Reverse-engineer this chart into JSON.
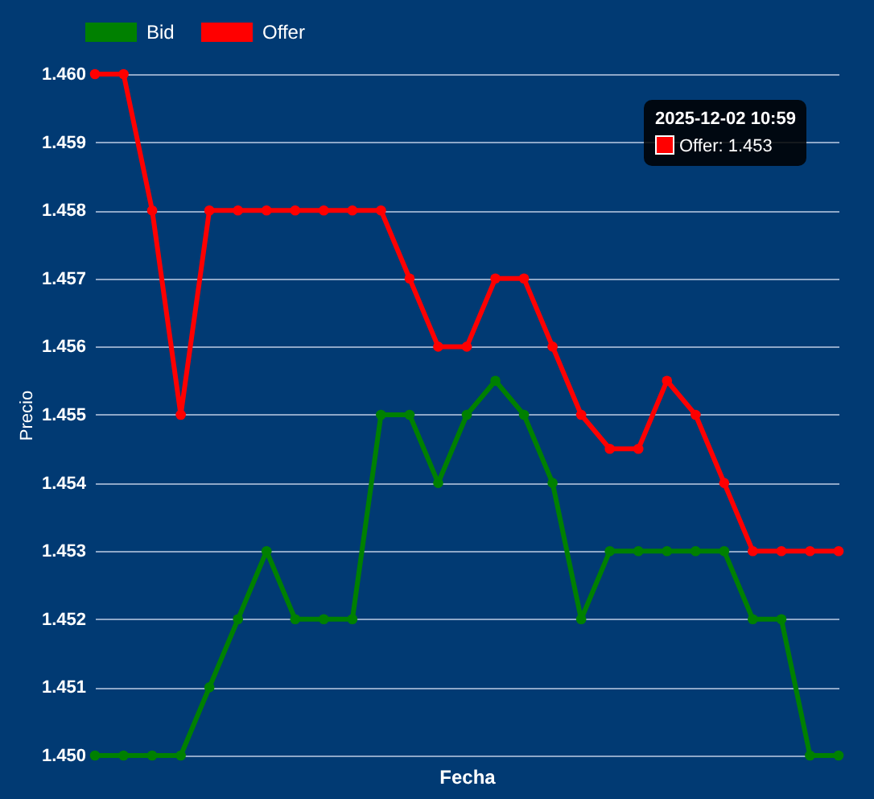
{
  "chart_data": {
    "type": "line",
    "xlabel": "Fecha",
    "ylabel": "Precio",
    "categories": [
      null,
      null,
      null,
      null,
      null,
      null,
      null,
      null,
      null,
      null,
      null,
      null,
      null,
      null,
      null,
      null,
      null,
      null,
      null,
      null,
      null,
      null,
      null,
      null,
      null,
      null,
      null
    ],
    "series": [
      {
        "name": "Bid",
        "color": "#008000",
        "values": [
          1.45,
          1.45,
          1.45,
          1.45,
          1.451,
          1.452,
          1.453,
          1.452,
          1.452,
          1.452,
          1.455,
          1.455,
          1.454,
          1.455,
          1.4555,
          1.455,
          1.454,
          1.452,
          1.453,
          1.453,
          1.453,
          1.453,
          1.453,
          1.452,
          1.452,
          1.45,
          1.45
        ]
      },
      {
        "name": "Offer",
        "color": "#ff0000",
        "values": [
          1.46,
          1.46,
          1.458,
          1.455,
          1.458,
          1.458,
          1.458,
          1.458,
          1.458,
          1.458,
          1.458,
          1.457,
          1.456,
          1.456,
          1.457,
          1.457,
          1.456,
          1.455,
          1.4545,
          1.4545,
          1.4555,
          1.455,
          1.454,
          1.453,
          1.453,
          1.453,
          1.453
        ]
      }
    ],
    "ylim": [
      1.45,
      1.46
    ],
    "yticks": [
      {
        "value": 1.45,
        "label": "1.450"
      },
      {
        "value": 1.451,
        "label": "1.451"
      },
      {
        "value": 1.452,
        "label": "1.452"
      },
      {
        "value": 1.453,
        "label": "1.453"
      },
      {
        "value": 1.454,
        "label": "1.454"
      },
      {
        "value": 1.455,
        "label": "1.455"
      },
      {
        "value": 1.456,
        "label": "1.456"
      },
      {
        "value": 1.457,
        "label": "1.457"
      },
      {
        "value": 1.458,
        "label": "1.458"
      },
      {
        "value": 1.459,
        "label": "1.459"
      },
      {
        "value": 1.46,
        "label": "1.460"
      }
    ],
    "grid": "y",
    "legend": "top",
    "marker": "circle",
    "line_style": "solid",
    "annotations": [
      "2025-12-02 10:59",
      "Offer: 1.453"
    ]
  }
}
